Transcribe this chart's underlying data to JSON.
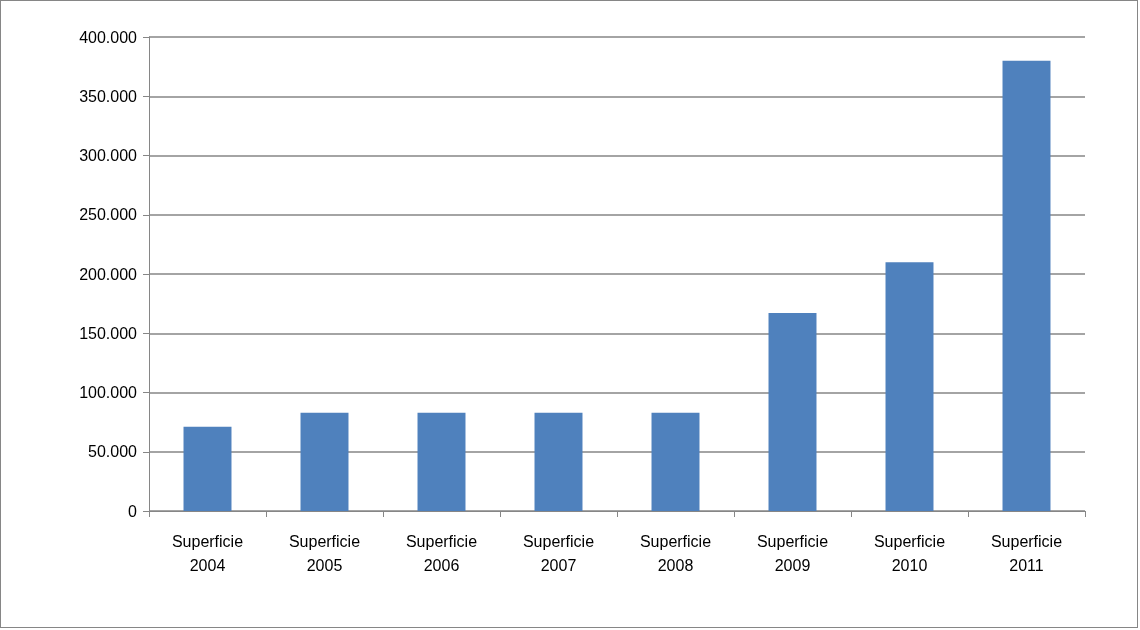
{
  "chart_data": {
    "type": "bar",
    "categories": [
      "Superficie 2004",
      "Superficie 2005",
      "Superficie 2006",
      "Superficie 2007",
      "Superficie 2008",
      "Superficie 2009",
      "Superficie 2010",
      "Superficie 2011"
    ],
    "values": [
      71000,
      83000,
      83000,
      83000,
      83000,
      167000,
      210000,
      380000
    ],
    "color": "#4f81bd",
    "ylim": [
      0,
      400000
    ],
    "yticks": [
      0,
      {
        "value": 50000,
        "label": "50.000"
      },
      {
        "value": 100000,
        "label": "100.000"
      },
      {
        "value": 150000,
        "label": "150.000"
      },
      {
        "value": 200000,
        "label": "200.000"
      },
      {
        "value": 250000,
        "label": "250.000"
      },
      {
        "value": 300000,
        "label": "300.000"
      },
      {
        "value": 350000,
        "label": "350.000"
      },
      {
        "value": 400000,
        "label": "400.000"
      }
    ],
    "grid": "y"
  }
}
